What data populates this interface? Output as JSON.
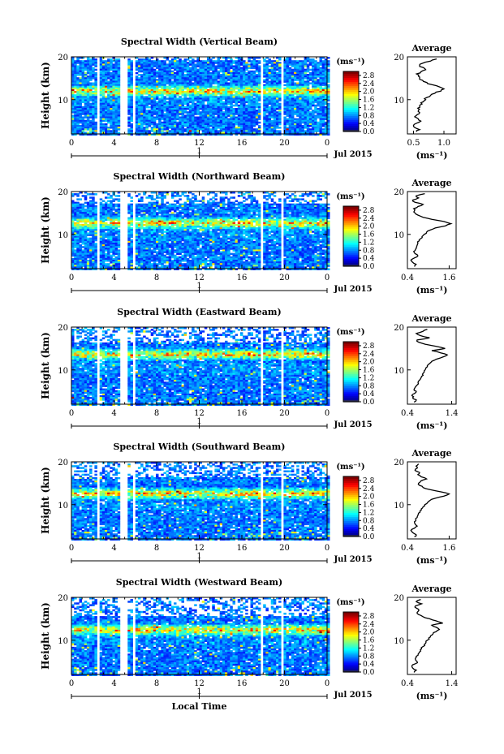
{
  "chart_data": [
    {
      "type": "heatmap",
      "title": "Spectral Width (Vertical Beam)",
      "ylabel": "Height (km)",
      "xlim": [
        0,
        24
      ],
      "ylim": [
        2,
        20
      ],
      "x_ticks": [
        "0",
        "4",
        "8",
        "12",
        "16",
        "20",
        "0"
      ],
      "y_ticks": [
        "20",
        "10"
      ],
      "date_axis": {
        "label": "1",
        "text": "Jul 2015"
      },
      "gaps_hours": [
        [
          2.4,
          2.6
        ],
        [
          4.5,
          5.2
        ],
        [
          5.6,
          5.9
        ],
        [
          17.6,
          17.9
        ],
        [
          19.6,
          19.9
        ]
      ],
      "colorbar": {
        "unit": "(ms⁻¹)",
        "ticks": [
          "2.8",
          "2.4",
          "2.0",
          "1.6",
          "1.2",
          "0.8",
          "0.4",
          "0.0"
        ],
        "range": [
          0,
          3.0
        ]
      },
      "average": {
        "title": "Average",
        "xlabel": "(ms⁻¹)",
        "x_ticks": [
          "0.5",
          "1.0"
        ],
        "xlim": [
          0.4,
          1.2
        ],
        "ylim": [
          2,
          20
        ],
        "y_ticks": [
          "20",
          "10"
        ],
        "profile": [
          [
            2.5,
            0.55
          ],
          [
            3,
            0.6
          ],
          [
            3.5,
            0.52
          ],
          [
            4,
            0.5
          ],
          [
            4.5,
            0.55
          ],
          [
            5,
            0.62
          ],
          [
            5.5,
            0.58
          ],
          [
            6,
            0.52
          ],
          [
            6.5,
            0.56
          ],
          [
            7,
            0.6
          ],
          [
            7.5,
            0.58
          ],
          [
            8,
            0.57
          ],
          [
            8.5,
            0.6
          ],
          [
            9,
            0.64
          ],
          [
            9.5,
            0.66
          ],
          [
            10,
            0.7
          ],
          [
            10.5,
            0.72
          ],
          [
            11,
            0.78
          ],
          [
            11.5,
            0.85
          ],
          [
            12,
            0.95
          ],
          [
            12.5,
            1.0
          ],
          [
            13,
            0.92
          ],
          [
            13.5,
            0.8
          ],
          [
            14,
            0.72
          ],
          [
            14.5,
            0.65
          ],
          [
            15,
            0.6
          ],
          [
            15.5,
            0.58
          ],
          [
            16,
            0.55
          ],
          [
            16.5,
            0.62
          ],
          [
            17,
            0.7
          ],
          [
            17.5,
            0.66
          ],
          [
            18,
            0.6
          ],
          [
            18.5,
            0.65
          ],
          [
            19,
            0.78
          ],
          [
            19.5,
            0.88
          ]
        ]
      }
    },
    {
      "type": "heatmap",
      "title": "Spectral Width (Northward Beam)",
      "ylabel": "Height (km)",
      "xlim": [
        0,
        24
      ],
      "ylim": [
        2,
        20
      ],
      "x_ticks": [
        "0",
        "4",
        "8",
        "12",
        "16",
        "20",
        "0"
      ],
      "y_ticks": [
        "20",
        "10"
      ],
      "date_axis": {
        "label": "1",
        "text": "Jul 2015"
      },
      "gaps_hours": [
        [
          2.4,
          2.6
        ],
        [
          4.5,
          5.2
        ],
        [
          5.6,
          5.9
        ],
        [
          17.6,
          17.9
        ],
        [
          19.6,
          19.9
        ]
      ],
      "colorbar": {
        "unit": "(ms⁻¹)",
        "ticks": [
          "2.8",
          "2.4",
          "2.0",
          "1.6",
          "1.2",
          "0.8",
          "0.4",
          "0.0"
        ],
        "range": [
          0,
          3.0
        ]
      },
      "average": {
        "title": "Average",
        "xlabel": "(ms⁻¹)",
        "x_ticks": [
          "0.4",
          "1.6"
        ],
        "xlim": [
          0.4,
          1.8
        ],
        "ylim": [
          2,
          20
        ],
        "y_ticks": [
          "20",
          "10"
        ],
        "profile": [
          [
            2.5,
            0.6
          ],
          [
            3,
            0.65
          ],
          [
            3.5,
            0.55
          ],
          [
            4,
            0.5
          ],
          [
            4.5,
            0.6
          ],
          [
            5,
            0.7
          ],
          [
            5.5,
            0.62
          ],
          [
            6,
            0.58
          ],
          [
            6.5,
            0.63
          ],
          [
            7,
            0.66
          ],
          [
            7.5,
            0.68
          ],
          [
            8,
            0.7
          ],
          [
            8.5,
            0.74
          ],
          [
            9,
            0.78
          ],
          [
            9.5,
            0.82
          ],
          [
            10,
            0.88
          ],
          [
            10.5,
            0.95
          ],
          [
            11,
            1.05
          ],
          [
            11.5,
            1.2
          ],
          [
            12,
            1.5
          ],
          [
            12.5,
            1.65
          ],
          [
            13,
            1.45
          ],
          [
            13.5,
            1.1
          ],
          [
            14,
            0.85
          ],
          [
            14.5,
            0.7
          ],
          [
            15,
            0.62
          ],
          [
            15.5,
            0.6
          ],
          [
            16,
            0.58
          ],
          [
            16.5,
            0.7
          ],
          [
            17,
            0.85
          ],
          [
            17.5,
            0.62
          ],
          [
            18,
            0.55
          ],
          [
            18.5,
            0.72
          ],
          [
            19,
            0.65
          ],
          [
            19.5,
            0.9
          ]
        ]
      }
    },
    {
      "type": "heatmap",
      "title": "Spectral Width (Eastward Beam)",
      "ylabel": "Height (km)",
      "xlim": [
        0,
        24
      ],
      "ylim": [
        2,
        20
      ],
      "x_ticks": [
        "0",
        "4",
        "8",
        "12",
        "16",
        "20",
        "0"
      ],
      "y_ticks": [
        "20",
        "10"
      ],
      "date_axis": {
        "label": "1",
        "text": "Jul 2015"
      },
      "gaps_hours": [
        [
          2.4,
          2.6
        ],
        [
          4.5,
          5.2
        ],
        [
          5.6,
          5.9
        ],
        [
          17.6,
          17.9
        ],
        [
          19.6,
          19.9
        ]
      ],
      "colorbar": {
        "unit": "(ms⁻¹)",
        "ticks": [
          "2.8",
          "2.4",
          "2.0",
          "1.6",
          "1.2",
          "0.8",
          "0.4",
          "0.0"
        ],
        "range": [
          0,
          3.0
        ]
      },
      "average": {
        "title": "Average",
        "xlabel": "(ms⁻¹)",
        "x_ticks": [
          "0.4",
          "1.4"
        ],
        "xlim": [
          0.4,
          1.5
        ],
        "ylim": [
          2,
          20
        ],
        "y_ticks": [
          "20",
          "10"
        ],
        "profile": [
          [
            2.5,
            0.55
          ],
          [
            3,
            0.6
          ],
          [
            3.5,
            0.52
          ],
          [
            4,
            0.5
          ],
          [
            4.5,
            0.56
          ],
          [
            5,
            0.6
          ],
          [
            5.5,
            0.55
          ],
          [
            6,
            0.58
          ],
          [
            6.5,
            0.62
          ],
          [
            7,
            0.64
          ],
          [
            7.5,
            0.66
          ],
          [
            8,
            0.7
          ],
          [
            8.5,
            0.72
          ],
          [
            9,
            0.74
          ],
          [
            9.5,
            0.78
          ],
          [
            10,
            0.8
          ],
          [
            10.5,
            0.82
          ],
          [
            11,
            0.85
          ],
          [
            11.5,
            0.9
          ],
          [
            12,
            0.95
          ],
          [
            12.5,
            1.05
          ],
          [
            13,
            1.2
          ],
          [
            13.5,
            1.3
          ],
          [
            14,
            1.15
          ],
          [
            14.5,
            0.95
          ],
          [
            15,
            1.25
          ],
          [
            15.5,
            1.05
          ],
          [
            16,
            0.8
          ],
          [
            16.5,
            0.65
          ],
          [
            17,
            0.62
          ],
          [
            17.5,
            0.9
          ],
          [
            18,
            0.7
          ],
          [
            18.5,
            0.6
          ],
          [
            19,
            0.75
          ],
          [
            19.5,
            0.85
          ]
        ]
      }
    },
    {
      "type": "heatmap",
      "title": "Spectral Width (Southward Beam)",
      "ylabel": "Height (km)",
      "xlim": [
        0,
        24
      ],
      "ylim": [
        2,
        20
      ],
      "x_ticks": [
        "0",
        "4",
        "8",
        "12",
        "16",
        "20",
        "0"
      ],
      "y_ticks": [
        "20",
        "10"
      ],
      "date_axis": {
        "label": "1",
        "text": "Jul 2015"
      },
      "gaps_hours": [
        [
          2.4,
          2.6
        ],
        [
          4.5,
          5.2
        ],
        [
          5.6,
          5.9
        ],
        [
          17.6,
          17.9
        ],
        [
          19.6,
          19.9
        ]
      ],
      "colorbar": {
        "unit": "(ms⁻¹)",
        "ticks": [
          "2.8",
          "2.4",
          "2.0",
          "1.6",
          "1.2",
          "0.8",
          "0.4",
          "0.0"
        ],
        "range": [
          0,
          3.0
        ]
      },
      "average": {
        "title": "Average",
        "xlabel": "(ms⁻¹)",
        "x_ticks": [
          "0.4",
          "1.6"
        ],
        "xlim": [
          0.4,
          1.8
        ],
        "ylim": [
          2,
          20
        ],
        "y_ticks": [
          "20",
          "10"
        ],
        "profile": [
          [
            2.5,
            0.6
          ],
          [
            3,
            0.65
          ],
          [
            3.5,
            0.55
          ],
          [
            4,
            0.5
          ],
          [
            4.5,
            0.6
          ],
          [
            5,
            0.68
          ],
          [
            5.5,
            0.62
          ],
          [
            6,
            0.6
          ],
          [
            6.5,
            0.64
          ],
          [
            7,
            0.68
          ],
          [
            7.5,
            0.7
          ],
          [
            8,
            0.72
          ],
          [
            8.5,
            0.76
          ],
          [
            9,
            0.8
          ],
          [
            9.5,
            0.85
          ],
          [
            10,
            0.9
          ],
          [
            10.5,
            0.98
          ],
          [
            11,
            1.05
          ],
          [
            11.5,
            1.2
          ],
          [
            12,
            1.45
          ],
          [
            12.5,
            1.6
          ],
          [
            13,
            1.35
          ],
          [
            13.5,
            1.05
          ],
          [
            14,
            0.85
          ],
          [
            14.5,
            0.75
          ],
          [
            15,
            0.72
          ],
          [
            15.5,
            0.78
          ],
          [
            16,
            0.95
          ],
          [
            16.5,
            0.8
          ],
          [
            17,
            0.7
          ],
          [
            17.5,
            0.75
          ],
          [
            18,
            0.62
          ],
          [
            18.5,
            0.68
          ],
          [
            19,
            0.65
          ],
          [
            19.5,
            0.72
          ]
        ]
      }
    },
    {
      "type": "heatmap",
      "title": "Spectral Width (Westward Beam)",
      "ylabel": "Height (km)",
      "xlabel": "Local Time",
      "xlim": [
        0,
        24
      ],
      "ylim": [
        2,
        20
      ],
      "x_ticks": [
        "0",
        "4",
        "8",
        "12",
        "16",
        "20",
        "0"
      ],
      "y_ticks": [
        "20",
        "10"
      ],
      "date_axis": {
        "label": "1",
        "text": "Jul 2015"
      },
      "gaps_hours": [
        [
          2.4,
          2.6
        ],
        [
          4.5,
          5.2
        ],
        [
          5.6,
          5.9
        ],
        [
          17.6,
          17.9
        ],
        [
          19.6,
          19.9
        ]
      ],
      "colorbar": {
        "unit": "(ms⁻¹)",
        "ticks": [
          "2.8",
          "2.4",
          "2.0",
          "1.6",
          "1.2",
          "0.8",
          "0.4",
          "0.0"
        ],
        "range": [
          0,
          3.0
        ]
      },
      "average": {
        "title": "Average",
        "xlabel": "(ms⁻¹)",
        "x_ticks": [
          "0.4",
          "1.4"
        ],
        "xlim": [
          0.4,
          1.5
        ],
        "ylim": [
          2,
          20
        ],
        "y_ticks": [
          "20",
          "10"
        ],
        "profile": [
          [
            2.5,
            0.55
          ],
          [
            3,
            0.6
          ],
          [
            3.5,
            0.52
          ],
          [
            4,
            0.5
          ],
          [
            4.5,
            0.58
          ],
          [
            5,
            0.62
          ],
          [
            5.5,
            0.58
          ],
          [
            6,
            0.6
          ],
          [
            6.5,
            0.64
          ],
          [
            7,
            0.66
          ],
          [
            7.5,
            0.7
          ],
          [
            8,
            0.72
          ],
          [
            8.5,
            0.75
          ],
          [
            9,
            0.78
          ],
          [
            9.5,
            0.82
          ],
          [
            10,
            0.85
          ],
          [
            10.5,
            0.88
          ],
          [
            11,
            0.92
          ],
          [
            11.5,
            0.98
          ],
          [
            12,
            1.05
          ],
          [
            12.5,
            1.12
          ],
          [
            13,
            1.05
          ],
          [
            13.5,
            0.95
          ],
          [
            14,
            1.2
          ],
          [
            14.5,
            1.05
          ],
          [
            15,
            0.9
          ],
          [
            15.5,
            0.75
          ],
          [
            16,
            0.65
          ],
          [
            16.5,
            0.62
          ],
          [
            17,
            0.66
          ],
          [
            17.5,
            0.6
          ],
          [
            18,
            0.58
          ],
          [
            18.5,
            0.72
          ],
          [
            19,
            0.6
          ],
          [
            19.5,
            0.7
          ]
        ]
      }
    }
  ]
}
